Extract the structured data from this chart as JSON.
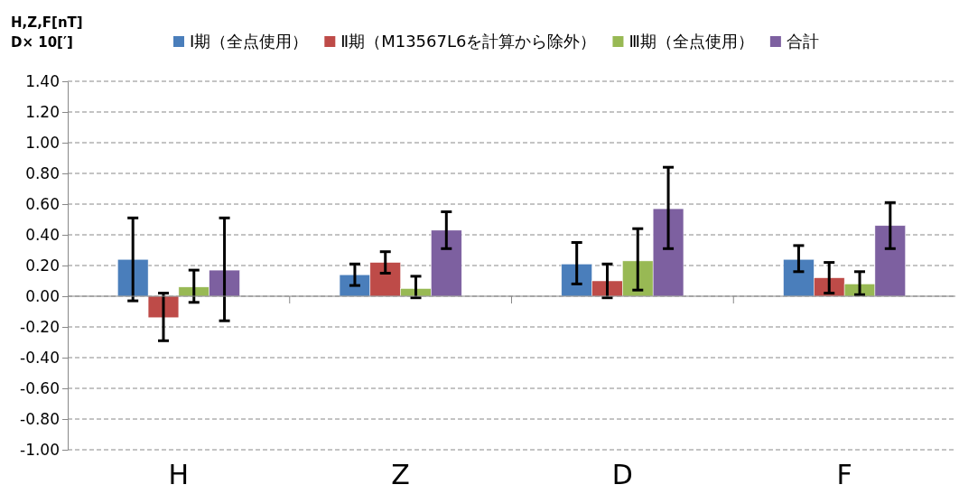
{
  "chart_data": {
    "type": "bar",
    "ylabel": "H,Z,F[nT]\nD× 10[′]",
    "categories": [
      "H",
      "Z",
      "D",
      "F"
    ],
    "series": [
      {
        "name": "Ⅰ期（全点使用）",
        "color": "#4a7ebb",
        "values": [
          0.24,
          0.14,
          0.21,
          0.24
        ],
        "errors": [
          [
            -0.03,
            0.51
          ],
          [
            0.07,
            0.21
          ],
          [
            0.08,
            0.35
          ],
          [
            0.16,
            0.33
          ]
        ]
      },
      {
        "name": "Ⅱ期（M13567L6を計算から除外）",
        "color": "#be4b48",
        "values": [
          -0.14,
          0.22,
          0.1,
          0.12
        ],
        "errors": [
          [
            -0.29,
            0.02
          ],
          [
            0.15,
            0.29
          ],
          [
            -0.01,
            0.21
          ],
          [
            0.02,
            0.22
          ]
        ]
      },
      {
        "name": "Ⅲ期（全点使用）",
        "color": "#98b954",
        "values": [
          0.06,
          0.05,
          0.23,
          0.08
        ],
        "errors": [
          [
            -0.04,
            0.17
          ],
          [
            -0.01,
            0.13
          ],
          [
            0.04,
            0.44
          ],
          [
            0.01,
            0.16
          ]
        ]
      },
      {
        "name": "合計",
        "color": "#7d60a0",
        "values": [
          0.17,
          0.43,
          0.57,
          0.46
        ],
        "errors": [
          [
            -0.16,
            0.51
          ],
          [
            0.31,
            0.55
          ],
          [
            0.31,
            0.84
          ],
          [
            0.31,
            0.61
          ]
        ]
      }
    ],
    "ylim": [
      -1,
      1.4
    ],
    "yticks": [
      {
        "value": -1,
        "label": "-1.00"
      },
      {
        "value": -0.8,
        "label": "-0.80"
      },
      {
        "value": -0.6,
        "label": "-0.60"
      },
      {
        "value": -0.4,
        "label": "-0.40"
      },
      {
        "value": -0.2,
        "label": "-0.20"
      },
      {
        "value": 0,
        "label": "0.00"
      },
      {
        "value": 0.2,
        "label": "0.20"
      },
      {
        "value": 0.4,
        "label": "0.40"
      },
      {
        "value": 0.6,
        "label": "0.60"
      },
      {
        "value": 0.8,
        "label": "0.80"
      },
      {
        "value": 1,
        "label": "1.00"
      },
      {
        "value": 1.2,
        "label": "1.20"
      },
      {
        "value": 1.4,
        "label": "1.40"
      }
    ],
    "grid": "y",
    "legend": "top"
  }
}
